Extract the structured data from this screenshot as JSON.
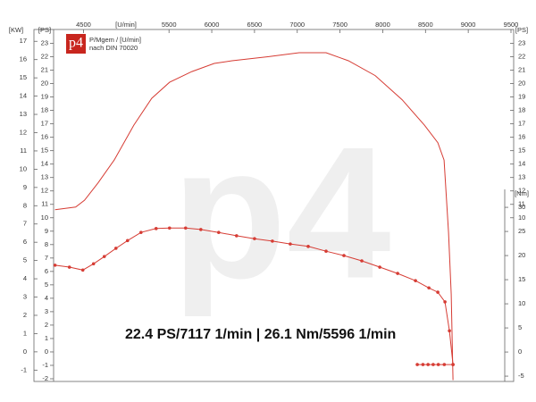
{
  "chart_data": {
    "type": "line",
    "title": "22.4 PS/7117 1/min | 26.1 Nm/5596 1/min",
    "logo": "p4",
    "logo_line1": "P/Mgem / [U/min]",
    "logo_line2": "nach DIN 70020",
    "watermark": "p4",
    "x_label": "[U/min]",
    "xlim": [
      4150,
      9500
    ],
    "xticks": [
      4500,
      5500,
      6000,
      6500,
      7000,
      7500,
      8000,
      8500,
      9000,
      9500
    ],
    "y_label": "[PS]",
    "ylim": [
      -2.2,
      23.9
    ],
    "yticks": [
      23,
      22,
      21,
      20,
      19,
      18,
      17,
      16,
      15,
      14,
      13,
      12,
      11,
      10,
      9,
      8,
      7,
      6,
      5,
      4,
      3,
      2,
      1,
      0,
      -1,
      -2
    ],
    "y_right_label": "[PS]",
    "y_right_ticks": [
      23,
      22,
      21,
      20,
      19,
      18,
      17,
      16,
      15,
      14,
      13,
      12,
      11,
      10
    ],
    "kw_label": "[KW]",
    "kw_lim": [
      -1.62,
      17.55
    ],
    "kw_ticks": [
      17,
      16,
      15,
      14,
      13,
      12,
      11,
      10,
      9,
      8,
      7,
      6,
      5,
      4,
      3,
      2,
      1,
      0,
      -1
    ],
    "y2_label": "[Nm]",
    "y2lim": [
      -6.1,
      66.5
    ],
    "y2ticks": [
      30,
      25,
      20,
      15,
      10,
      5,
      0,
      -5
    ],
    "series": [
      {
        "axis": "y",
        "color": "#d63c34",
        "markers": false,
        "x": [
          4167,
          4408,
          4512,
          4670,
          4858,
          5088,
          5297,
          5506,
          5768,
          6029,
          6238,
          6657,
          7023,
          7337,
          7598,
          7912,
          8226,
          8487,
          8644,
          8717,
          8770,
          8801,
          8822
        ],
        "values": [
          10.6,
          10.8,
          11.3,
          12.6,
          14.3,
          16.9,
          18.9,
          20.1,
          20.9,
          21.5,
          21.7,
          22.0,
          22.3,
          22.3,
          21.7,
          20.6,
          18.8,
          16.9,
          15.6,
          14.3,
          8.9,
          4.3,
          -2.1
        ]
      },
      {
        "axis": "y2",
        "color": "#d63c34",
        "markers": true,
        "x": [
          4167,
          4335,
          4492,
          4617,
          4743,
          4879,
          5015,
          5172,
          5349,
          5506,
          5694,
          5872,
          6081,
          6290,
          6500,
          6709,
          6918,
          7128,
          7337,
          7546,
          7755,
          7965,
          8174,
          8383,
          8540,
          8644,
          8728,
          8780,
          8822
        ],
        "values": [
          18.0,
          17.6,
          17.0,
          18.3,
          19.8,
          21.5,
          23.1,
          24.8,
          25.6,
          25.7,
          25.7,
          25.4,
          24.8,
          24.1,
          23.5,
          23.0,
          22.4,
          21.9,
          20.9,
          20.0,
          18.9,
          17.6,
          16.3,
          14.8,
          13.3,
          12.4,
          10.4,
          4.4,
          -2.6
        ]
      },
      {
        "axis": "y2",
        "color": "#d63c34",
        "markers": true,
        "x": [
          8404,
          8470,
          8530,
          8590,
          8650,
          8720,
          8822
        ],
        "values": [
          -2.6,
          -2.6,
          -2.6,
          -2.6,
          -2.6,
          -2.6,
          -2.6
        ]
      }
    ]
  }
}
